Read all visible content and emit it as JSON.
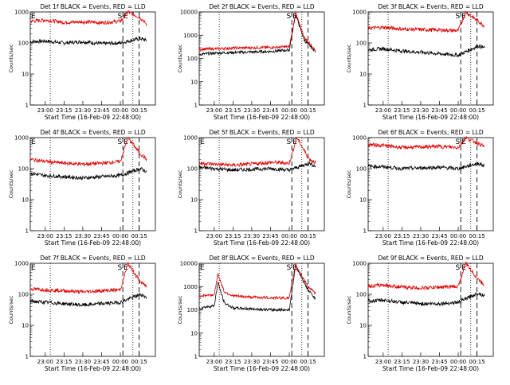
{
  "figure": {
    "ylabel": "Counts/sec",
    "xlabel": "Start Time (16-Feb-09 22:48:00)",
    "legend_colors": {
      "events": "#000000",
      "lld": "#e00000"
    }
  },
  "chart_data": [
    {
      "type": "line",
      "title": "Det 1f BLACK = Events, RED = LLD",
      "xlabel": "Start Time (16-Feb-09 22:48:00)",
      "ylabel": "Counts/sec",
      "yscale": "log",
      "ylim": [
        1,
        1000
      ],
      "y_ticks": [
        "1",
        "10",
        "100",
        "1000"
      ],
      "x_ticks": [
        "23:00",
        "23:15",
        "23:30",
        "23:45",
        "00:00",
        "00:15"
      ],
      "markers": [
        "E",
        "S",
        "E"
      ],
      "series": [
        {
          "color": "#000000",
          "points": [
            [
              "22:48",
              110
            ],
            [
              "23:00",
              115
            ],
            [
              "23:15",
              100
            ],
            [
              "23:30",
              110
            ],
            [
              "23:45",
              95
            ],
            [
              "00:00",
              100
            ],
            [
              "00:16",
              140
            ],
            [
              "00:21",
              120
            ]
          ]
        },
        {
          "color": "#e00000",
          "points": [
            [
              "22:48",
              500
            ],
            [
              "23:00",
              550
            ],
            [
              "23:15",
              460
            ],
            [
              "23:30",
              480
            ],
            [
              "23:45",
              450
            ],
            [
              "00:00",
              500
            ],
            [
              "00:06",
              1000
            ],
            [
              "00:16",
              650
            ],
            [
              "00:21",
              400
            ]
          ]
        }
      ]
    },
    {
      "type": "line",
      "title": "Det 2f BLACK = Events, RED = LLD",
      "xlabel": "Start Time (16-Feb-09 22:48:00)",
      "ylabel": "Counts/sec",
      "yscale": "log",
      "ylim": [
        1,
        10000
      ],
      "y_ticks": [
        "1",
        "10",
        "100",
        "1000",
        "10000"
      ],
      "x_ticks": [
        "23:00",
        "23:15",
        "23:30",
        "23:45",
        "00:00",
        "00:15"
      ],
      "markers": [
        "S",
        "E"
      ],
      "series": [
        {
          "color": "#000000",
          "points": [
            [
              "22:48",
              150
            ],
            [
              "23:00",
              170
            ],
            [
              "23:15",
              180
            ],
            [
              "23:30",
              190
            ],
            [
              "23:45",
              200
            ],
            [
              "00:00",
              230
            ],
            [
              "00:05",
              8000
            ],
            [
              "00:12",
              600
            ],
            [
              "00:21",
              200
            ]
          ]
        },
        {
          "color": "#e00000",
          "points": [
            [
              "22:48",
              250
            ],
            [
              "23:00",
              260
            ],
            [
              "23:15",
              280
            ],
            [
              "23:30",
              290
            ],
            [
              "23:45",
              300
            ],
            [
              "00:00",
              320
            ],
            [
              "00:05",
              9000
            ],
            [
              "00:12",
              800
            ],
            [
              "00:21",
              220
            ]
          ]
        }
      ]
    },
    {
      "type": "line",
      "title": "Det 3f BLACK = Events, RED = LLD",
      "xlabel": "Start Time (16-Feb-09 22:48:00)",
      "ylabel": "Counts/sec",
      "yscale": "log",
      "ylim": [
        1,
        1000
      ],
      "y_ticks": [
        "1",
        "10",
        "100",
        "1000"
      ],
      "x_ticks": [
        "23:00",
        "23:15",
        "23:30",
        "23:45",
        "00:00",
        "00:15"
      ],
      "markers": [
        "S",
        "E"
      ],
      "series": [
        {
          "color": "#000000",
          "points": [
            [
              "22:48",
              60
            ],
            [
              "23:00",
              65
            ],
            [
              "23:15",
              55
            ],
            [
              "23:30",
              50
            ],
            [
              "23:45",
              45
            ],
            [
              "00:00",
              40
            ],
            [
              "00:16",
              80
            ],
            [
              "00:21",
              70
            ]
          ]
        },
        {
          "color": "#e00000",
          "points": [
            [
              "22:48",
              300
            ],
            [
              "23:00",
              320
            ],
            [
              "23:15",
              280
            ],
            [
              "23:30",
              270
            ],
            [
              "23:45",
              260
            ],
            [
              "00:00",
              250
            ],
            [
              "00:06",
              1000
            ],
            [
              "00:16",
              500
            ],
            [
              "00:21",
              350
            ]
          ]
        }
      ]
    },
    {
      "type": "line",
      "title": "Det 4f BLACK = Events, RED = LLD",
      "xlabel": "Start Time (16-Feb-09 22:48:00)",
      "ylabel": "Counts/sec",
      "yscale": "log",
      "ylim": [
        1,
        1000
      ],
      "y_ticks": [
        "1",
        "10",
        "100",
        "1000"
      ],
      "x_ticks": [
        "23:00",
        "23:15",
        "23:30",
        "23:45",
        "00:00",
        "00:15"
      ],
      "markers": [
        "E",
        "S",
        "E"
      ],
      "series": [
        {
          "color": "#000000",
          "points": [
            [
              "22:48",
              70
            ],
            [
              "23:00",
              60
            ],
            [
              "23:15",
              55
            ],
            [
              "23:30",
              50
            ],
            [
              "23:45",
              55
            ],
            [
              "00:00",
              60
            ],
            [
              "00:16",
              100
            ],
            [
              "00:21",
              80
            ]
          ]
        },
        {
          "color": "#e00000",
          "points": [
            [
              "22:48",
              200
            ],
            [
              "23:00",
              170
            ],
            [
              "23:15",
              150
            ],
            [
              "23:30",
              140
            ],
            [
              "23:45",
              150
            ],
            [
              "00:00",
              170
            ],
            [
              "00:06",
              1000
            ],
            [
              "00:16",
              300
            ],
            [
              "00:21",
              200
            ]
          ]
        }
      ]
    },
    {
      "type": "line",
      "title": "Det 5f BLACK = Events, RED = LLD",
      "xlabel": "Start Time (16-Feb-09 22:48:00)",
      "ylabel": "Counts/sec",
      "yscale": "log",
      "ylim": [
        1,
        1000
      ],
      "y_ticks": [
        "1",
        "10",
        "100",
        "1000"
      ],
      "x_ticks": [
        "23:00",
        "23:15",
        "23:30",
        "23:45",
        "00:00",
        "00:15"
      ],
      "markers": [
        "E",
        "S",
        "E"
      ],
      "series": [
        {
          "color": "#000000",
          "points": [
            [
              "22:48",
              110
            ],
            [
              "23:00",
              100
            ],
            [
              "23:15",
              90
            ],
            [
              "23:30",
              95
            ],
            [
              "23:45",
              100
            ],
            [
              "00:00",
              90
            ],
            [
              "00:16",
              150
            ],
            [
              "00:21",
              120
            ]
          ]
        },
        {
          "color": "#e00000",
          "points": [
            [
              "22:48",
              150
            ],
            [
              "23:00",
              140
            ],
            [
              "23:15",
              130
            ],
            [
              "23:30",
              140
            ],
            [
              "23:45",
              160
            ],
            [
              "00:00",
              150
            ],
            [
              "00:06",
              1000
            ],
            [
              "00:16",
              200
            ],
            [
              "00:21",
              160
            ]
          ]
        }
      ]
    },
    {
      "type": "line",
      "title": "Det 6f BLACK = Events, RED = LLD",
      "xlabel": "Start Time (16-Feb-09 22:48:00)",
      "ylabel": "Counts/sec",
      "yscale": "log",
      "ylim": [
        1,
        1000
      ],
      "y_ticks": [
        "1",
        "10",
        "100",
        "1000"
      ],
      "x_ticks": [
        "23:00",
        "23:15",
        "23:30",
        "23:45",
        "00:00",
        "00:15"
      ],
      "markers": [
        "S",
        "E"
      ],
      "series": [
        {
          "color": "#000000",
          "points": [
            [
              "22:48",
              120
            ],
            [
              "23:00",
              115
            ],
            [
              "23:15",
              100
            ],
            [
              "23:30",
              105
            ],
            [
              "23:45",
              110
            ],
            [
              "00:00",
              100
            ],
            [
              "00:16",
              150
            ],
            [
              "00:21",
              120
            ]
          ]
        },
        {
          "color": "#e00000",
          "points": [
            [
              "22:48",
              600
            ],
            [
              "23:00",
              560
            ],
            [
              "23:15",
              480
            ],
            [
              "23:30",
              500
            ],
            [
              "23:45",
              520
            ],
            [
              "00:00",
              480
            ],
            [
              "00:06",
              1000
            ],
            [
              "00:16",
              650
            ],
            [
              "00:21",
              500
            ]
          ]
        }
      ]
    },
    {
      "type": "line",
      "title": "Det 7f BLACK = Events, RED = LLD",
      "xlabel": "Start Time (16-Feb-09 22:48:00)",
      "ylabel": "Counts/sec",
      "yscale": "log",
      "ylim": [
        1,
        1000
      ],
      "y_ticks": [
        "1",
        "10",
        "100",
        "1000"
      ],
      "x_ticks": [
        "23:00",
        "23:15",
        "23:30",
        "23:45",
        "00:00",
        "00:15"
      ],
      "markers": [
        "E",
        "S",
        "E"
      ],
      "series": [
        {
          "color": "#000000",
          "points": [
            [
              "22:48",
              60
            ],
            [
              "23:00",
              55
            ],
            [
              "23:15",
              50
            ],
            [
              "23:30",
              45
            ],
            [
              "23:45",
              50
            ],
            [
              "00:00",
              55
            ],
            [
              "00:16",
              100
            ],
            [
              "00:21",
              80
            ]
          ]
        },
        {
          "color": "#e00000",
          "points": [
            [
              "22:48",
              150
            ],
            [
              "23:00",
              140
            ],
            [
              "23:15",
              130
            ],
            [
              "23:30",
              120
            ],
            [
              "23:45",
              130
            ],
            [
              "00:00",
              140
            ],
            [
              "00:06",
              1000
            ],
            [
              "00:16",
              250
            ],
            [
              "00:21",
              180
            ]
          ]
        }
      ]
    },
    {
      "type": "line",
      "title": "Det 8f BLACK = Events, RED = LLD",
      "xlabel": "Start Time (16-Feb-09 22:48:00)",
      "ylabel": "Counts/sec",
      "yscale": "log",
      "ylim": [
        1,
        10000
      ],
      "y_ticks": [
        "1",
        "10",
        "100",
        "1000",
        "10000"
      ],
      "x_ticks": [
        "23:00",
        "23:15",
        "23:30",
        "23:45",
        "00:00",
        "00:15"
      ],
      "markers": [
        "E",
        "S",
        "E"
      ],
      "series": [
        {
          "color": "#000000",
          "points": [
            [
              "22:48",
              120
            ],
            [
              "23:00",
              150
            ],
            [
              "23:03",
              1500
            ],
            [
              "23:08",
              200
            ],
            [
              "23:15",
              120
            ],
            [
              "23:30",
              110
            ],
            [
              "23:45",
              100
            ],
            [
              "00:00",
              100
            ],
            [
              "00:05",
              8000
            ],
            [
              "00:15",
              700
            ],
            [
              "00:21",
              300
            ]
          ]
        },
        {
          "color": "#e00000",
          "points": [
            [
              "22:48",
              400
            ],
            [
              "23:00",
              450
            ],
            [
              "23:03",
              3500
            ],
            [
              "23:08",
              600
            ],
            [
              "23:15",
              400
            ],
            [
              "23:30",
              350
            ],
            [
              "23:45",
              330
            ],
            [
              "00:00",
              320
            ],
            [
              "00:05",
              9000
            ],
            [
              "00:15",
              1000
            ],
            [
              "00:21",
              500
            ]
          ]
        }
      ]
    },
    {
      "type": "line",
      "title": "Det 9f BLACK = Events, RED = LLD",
      "xlabel": "Start Time (16-Feb-09 22:48:00)",
      "ylabel": "Counts/sec",
      "yscale": "log",
      "ylim": [
        1,
        1000
      ],
      "y_ticks": [
        "1",
        "10",
        "100",
        "1000"
      ],
      "x_ticks": [
        "23:00",
        "23:15",
        "23:30",
        "23:45",
        "00:00",
        "00:15"
      ],
      "markers": [
        "S",
        "E"
      ],
      "series": [
        {
          "color": "#000000",
          "points": [
            [
              "22:48",
              60
            ],
            [
              "23:00",
              65
            ],
            [
              "23:15",
              55
            ],
            [
              "23:30",
              50
            ],
            [
              "23:45",
              50
            ],
            [
              "00:00",
              55
            ],
            [
              "00:16",
              110
            ],
            [
              "00:21",
              90
            ]
          ]
        },
        {
          "color": "#e00000",
          "points": [
            [
              "22:48",
              180
            ],
            [
              "23:00",
              200
            ],
            [
              "23:15",
              170
            ],
            [
              "23:30",
              160
            ],
            [
              "23:45",
              170
            ],
            [
              "00:00",
              180
            ],
            [
              "00:06",
              1000
            ],
            [
              "00:16",
              300
            ],
            [
              "00:21",
              200
            ]
          ]
        }
      ]
    }
  ]
}
